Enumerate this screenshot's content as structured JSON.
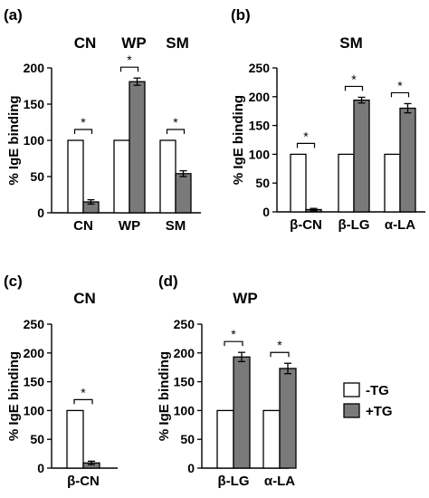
{
  "colors": {
    "minus": "#ffffff",
    "plus": "#7a7a7a",
    "stroke": "#000000"
  },
  "legend": {
    "items": [
      {
        "label": "-TG",
        "color": "#ffffff"
      },
      {
        "label": "+TG",
        "color": "#7a7a7a"
      }
    ]
  },
  "chart_data": [
    {
      "panel": "(a)",
      "type": "bar",
      "title": "",
      "ylabel": "% IgE binding",
      "ylim": [
        0,
        200
      ],
      "yticks": [
        0,
        50,
        100,
        150,
        200
      ],
      "categories": [
        "CN",
        "WP",
        "SM"
      ],
      "group_titles": [
        "CN",
        "WP",
        "SM"
      ],
      "series": [
        {
          "name": "-TG",
          "values": [
            100,
            100,
            100
          ],
          "errors": [
            0,
            0,
            0
          ]
        },
        {
          "name": "+TG",
          "values": [
            15,
            181,
            54
          ],
          "errors": [
            3,
            5,
            4
          ]
        }
      ],
      "significance": [
        "*",
        "*",
        "*"
      ]
    },
    {
      "panel": "(b)",
      "type": "bar",
      "title": "SM",
      "ylabel": "% IgE binding",
      "ylim": [
        0,
        250
      ],
      "yticks": [
        0,
        50,
        100,
        150,
        200,
        250
      ],
      "categories": [
        "β-CN",
        "β-LG",
        "α-LA"
      ],
      "series": [
        {
          "name": "-TG",
          "values": [
            100,
            100,
            100
          ],
          "errors": [
            0,
            0,
            0
          ]
        },
        {
          "name": "+TG",
          "values": [
            4,
            194,
            180
          ],
          "errors": [
            2,
            5,
            8
          ]
        }
      ],
      "significance": [
        "*",
        "*",
        "*"
      ]
    },
    {
      "panel": "(c)",
      "type": "bar",
      "title": "CN",
      "ylabel": "% IgE binding",
      "ylim": [
        0,
        250
      ],
      "yticks": [
        0,
        50,
        100,
        150,
        200,
        250
      ],
      "categories": [
        "β-CN"
      ],
      "series": [
        {
          "name": "-TG",
          "values": [
            100
          ],
          "errors": [
            0
          ]
        },
        {
          "name": "+TG",
          "values": [
            9
          ],
          "errors": [
            3
          ]
        }
      ],
      "significance": [
        "*"
      ]
    },
    {
      "panel": "(d)",
      "type": "bar",
      "title": "WP",
      "ylabel": "% IgE binding",
      "ylim": [
        0,
        250
      ],
      "yticks": [
        0,
        50,
        100,
        150,
        200,
        250
      ],
      "categories": [
        "β-LG",
        "α-LA"
      ],
      "series": [
        {
          "name": "-TG",
          "values": [
            100,
            100
          ],
          "errors": [
            0,
            0
          ]
        },
        {
          "name": "+TG",
          "values": [
            193,
            173
          ],
          "errors": [
            8,
            9
          ]
        }
      ],
      "significance": [
        "*",
        "*"
      ]
    }
  ]
}
